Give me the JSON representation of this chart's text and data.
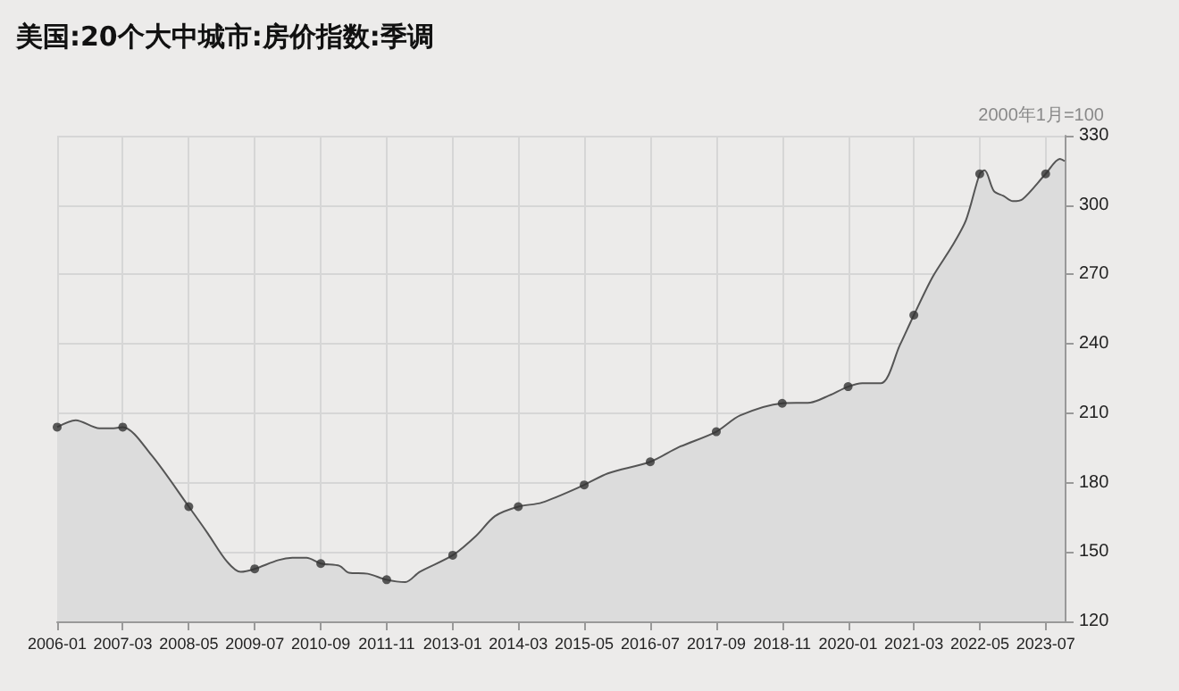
{
  "chart_data": {
    "type": "area",
    "title": "美国:20个大中城市:房价指数:季调",
    "ylabel": "2000年1月=100",
    "x": [
      "2006-01",
      "2006-05",
      "2006-10",
      "2007-01",
      "2007-03",
      "2007-09",
      "2008-05",
      "2008-09",
      "2009-01",
      "2009-04",
      "2009-07",
      "2009-12",
      "2010-03",
      "2010-06",
      "2010-09",
      "2011-01",
      "2011-03",
      "2011-07",
      "2011-11",
      "2012-03",
      "2012-06",
      "2013-01",
      "2013-06",
      "2013-10",
      "2014-03",
      "2014-08",
      "2015-05",
      "2015-10",
      "2016-07",
      "2017-01",
      "2017-09",
      "2018-02",
      "2018-11",
      "2019-05",
      "2019-09",
      "2020-01",
      "2020-04",
      "2020-08",
      "2020-12",
      "2021-03",
      "2021-07",
      "2021-11",
      "2022-02",
      "2022-05",
      "2022-06",
      "2022-08",
      "2022-10",
      "2022-12",
      "2023-02",
      "2023-07",
      "2023-10",
      "2023-11"
    ],
    "series": [
      {
        "color": "#555555",
        "marker": "none",
        "values": [
          204,
          207,
          203.5,
          203.5,
          204,
          192,
          169.6,
          158,
          146,
          141.4,
          142.7,
          146.5,
          147.5,
          147.5,
          145,
          144,
          141,
          140.6,
          138,
          137,
          141.4,
          148.6,
          157,
          165.5,
          169.6,
          171.4,
          179,
          184,
          189,
          195.3,
          202,
          209,
          214.3,
          214.6,
          217.7,
          221.5,
          223,
          223,
          239.5,
          252.4,
          269,
          282,
          293.5,
          313.5,
          315,
          306,
          304,
          301.7,
          302.5,
          313.5,
          320,
          319
        ]
      },
      {
        "type": "scatter",
        "color": "#333333",
        "x": [
          "2006-01",
          "2007-03",
          "2008-05",
          "2009-07",
          "2010-09",
          "2011-11",
          "2013-01",
          "2014-03",
          "2015-05",
          "2016-07",
          "2017-09",
          "2018-11",
          "2020-01",
          "2021-03",
          "2022-05",
          "2023-07"
        ],
        "values": [
          204,
          204,
          169.6,
          142.7,
          145,
          138,
          148.6,
          169.6,
          179,
          189,
          202,
          214.3,
          221.5,
          252.4,
          313.5,
          313.5
        ]
      }
    ],
    "xlim": [
      "2006-01",
      "2023-11"
    ],
    "xticks": [
      "2006-01",
      "2007-03",
      "2008-05",
      "2009-07",
      "2010-09",
      "2011-11",
      "2013-01",
      "2014-03",
      "2015-05",
      "2016-07",
      "2017-09",
      "2018-11",
      "2020-01",
      "2021-03",
      "2022-05",
      "2023-07"
    ],
    "ylim": [
      120,
      330
    ],
    "yticks": [
      120,
      150,
      180,
      210,
      240,
      270,
      300,
      330
    ],
    "grid": true,
    "marker": "circle"
  }
}
